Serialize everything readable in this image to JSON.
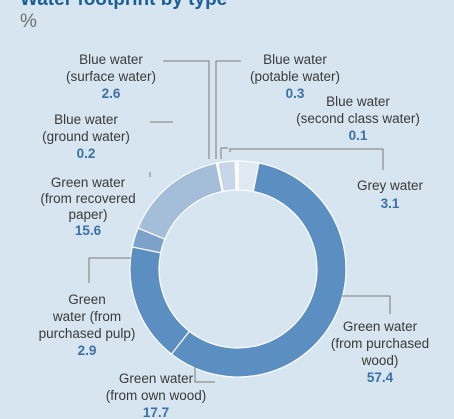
{
  "header": {
    "title_clipped": "Water footprint by type",
    "unit": "%"
  },
  "chart_data": {
    "type": "pie",
    "donut": true,
    "unit": "%",
    "legend": "none",
    "categories": [
      "Grey water",
      "Green water (from purchased wood)",
      "Green water (from own wood)",
      "Green water (from purchased pulp)",
      "Green water (from recovered paper)",
      "Blue water (ground water)",
      "Blue water (surface water)",
      "Blue water (potable water)",
      "Blue water (second class water)"
    ],
    "values": [
      3.1,
      57.4,
      17.7,
      2.9,
      15.6,
      0.2,
      2.6,
      0.3,
      0.1
    ],
    "value_labels": [
      "3.1",
      "57.4",
      "17.7",
      "2.9",
      "15.6",
      "0.2",
      "2.6",
      "0.3",
      "0.1"
    ],
    "label_lines": [
      [
        "Grey water"
      ],
      [
        "Green water",
        "(from purchased",
        "wood)"
      ],
      [
        "Green water",
        "(from own wood)"
      ],
      [
        "Green",
        "water (from",
        "purchased pulp)"
      ],
      [
        "Green water",
        "(from recovered",
        "paper)"
      ],
      [
        "Blue water",
        "(ground water)"
      ],
      [
        "Blue water",
        "(surface water)"
      ],
      [
        "Blue water",
        "(potable water)"
      ],
      [
        "Blue water",
        "(second class water)"
      ]
    ],
    "colors": [
      "#e0e8f1",
      "#5b8ec1",
      "#5b8ec1",
      "#7ca2cb",
      "#a4bdd9",
      "#eef3f9",
      "#c7d6e8",
      "#eef3f9",
      "#ffffff"
    ]
  }
}
